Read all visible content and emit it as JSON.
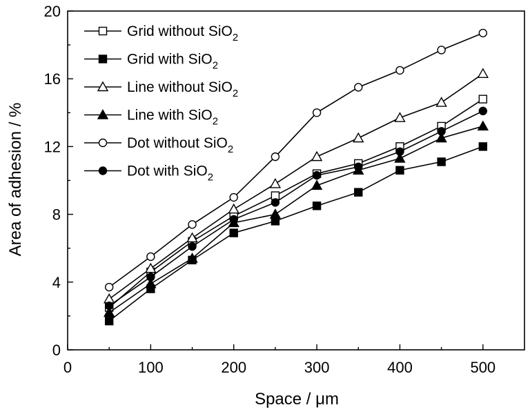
{
  "chart_data": {
    "type": "line",
    "title": "",
    "xlabel": "Space / μm",
    "ylabel": "Area of adhesion / %",
    "xlim": [
      0,
      550
    ],
    "ylim": [
      0,
      20
    ],
    "xticks": [
      0,
      100,
      200,
      300,
      400,
      500
    ],
    "yticks": [
      0,
      4,
      8,
      12,
      16,
      20
    ],
    "grid": false,
    "legend_position": "top-left",
    "x": [
      50,
      100,
      150,
      200,
      250,
      300,
      350,
      400,
      450,
      500
    ],
    "series": [
      {
        "name": "Grid without SiO2",
        "label_main": "Grid without SiO",
        "label_sub": "2",
        "marker": "square-open",
        "values": [
          2.5,
          4.6,
          6.4,
          7.9,
          9.1,
          10.4,
          11.0,
          12.0,
          13.2,
          14.8
        ]
      },
      {
        "name": "Grid with SiO2",
        "label_main": "Grid with SiO",
        "label_sub": "2",
        "marker": "square-filled",
        "values": [
          1.7,
          3.6,
          5.3,
          6.9,
          7.6,
          8.5,
          9.3,
          10.6,
          11.1,
          12.0
        ]
      },
      {
        "name": "Line without SiO2",
        "label_main": "Line without SiO",
        "label_sub": "2",
        "marker": "triangle-open",
        "values": [
          3.0,
          4.8,
          6.6,
          8.3,
          9.8,
          11.4,
          12.5,
          13.7,
          14.6,
          16.3
        ]
      },
      {
        "name": "Line with SiO2",
        "label_main": "Line with SiO",
        "label_sub": "2",
        "marker": "triangle-filled",
        "values": [
          2.2,
          3.9,
          5.4,
          7.5,
          8.0,
          9.7,
          10.6,
          11.3,
          12.5,
          13.2
        ]
      },
      {
        "name": "Dot without SiO2",
        "label_main": "Dot without SiO",
        "label_sub": "2",
        "marker": "circle-open",
        "values": [
          3.7,
          5.5,
          7.4,
          9.0,
          11.4,
          14.0,
          15.5,
          16.5,
          17.7,
          18.7
        ]
      },
      {
        "name": "Dot with SiO2",
        "label_main": "Dot with SiO",
        "label_sub": "2",
        "marker": "circle-filled",
        "values": [
          2.6,
          4.3,
          6.1,
          7.7,
          8.7,
          10.3,
          10.8,
          11.7,
          12.9,
          14.1
        ]
      }
    ]
  }
}
